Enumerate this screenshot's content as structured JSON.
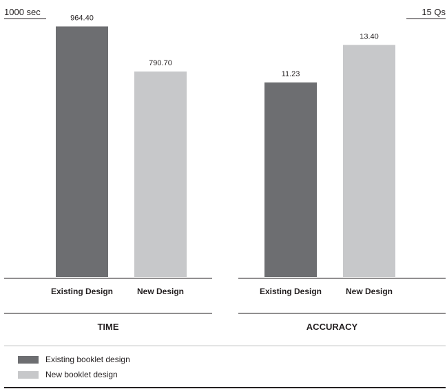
{
  "colors": {
    "existing": "#6d6e71",
    "new": "#c7c8ca",
    "rule": "#231f20"
  },
  "chart_data": [
    {
      "type": "bar",
      "title": "TIME",
      "axis_max_label": "1000 sec",
      "ylim": [
        0,
        1000
      ],
      "categories": [
        "Existing Design",
        "New Design"
      ],
      "values": [
        964.4,
        790.7
      ],
      "data_labels": [
        "964.40",
        "790.70"
      ]
    },
    {
      "type": "bar",
      "title": "ACCURACY",
      "axis_max_label": "15 Qs",
      "ylim": [
        0,
        15
      ],
      "categories": [
        "Existing Design",
        "New Design"
      ],
      "values": [
        11.23,
        13.4
      ],
      "data_labels": [
        "11.23",
        "13.40"
      ]
    }
  ],
  "legend": {
    "items": [
      {
        "label": "Existing booklet design",
        "color": "#6d6e71"
      },
      {
        "label": "New booklet design",
        "color": "#c7c8ca"
      }
    ]
  }
}
